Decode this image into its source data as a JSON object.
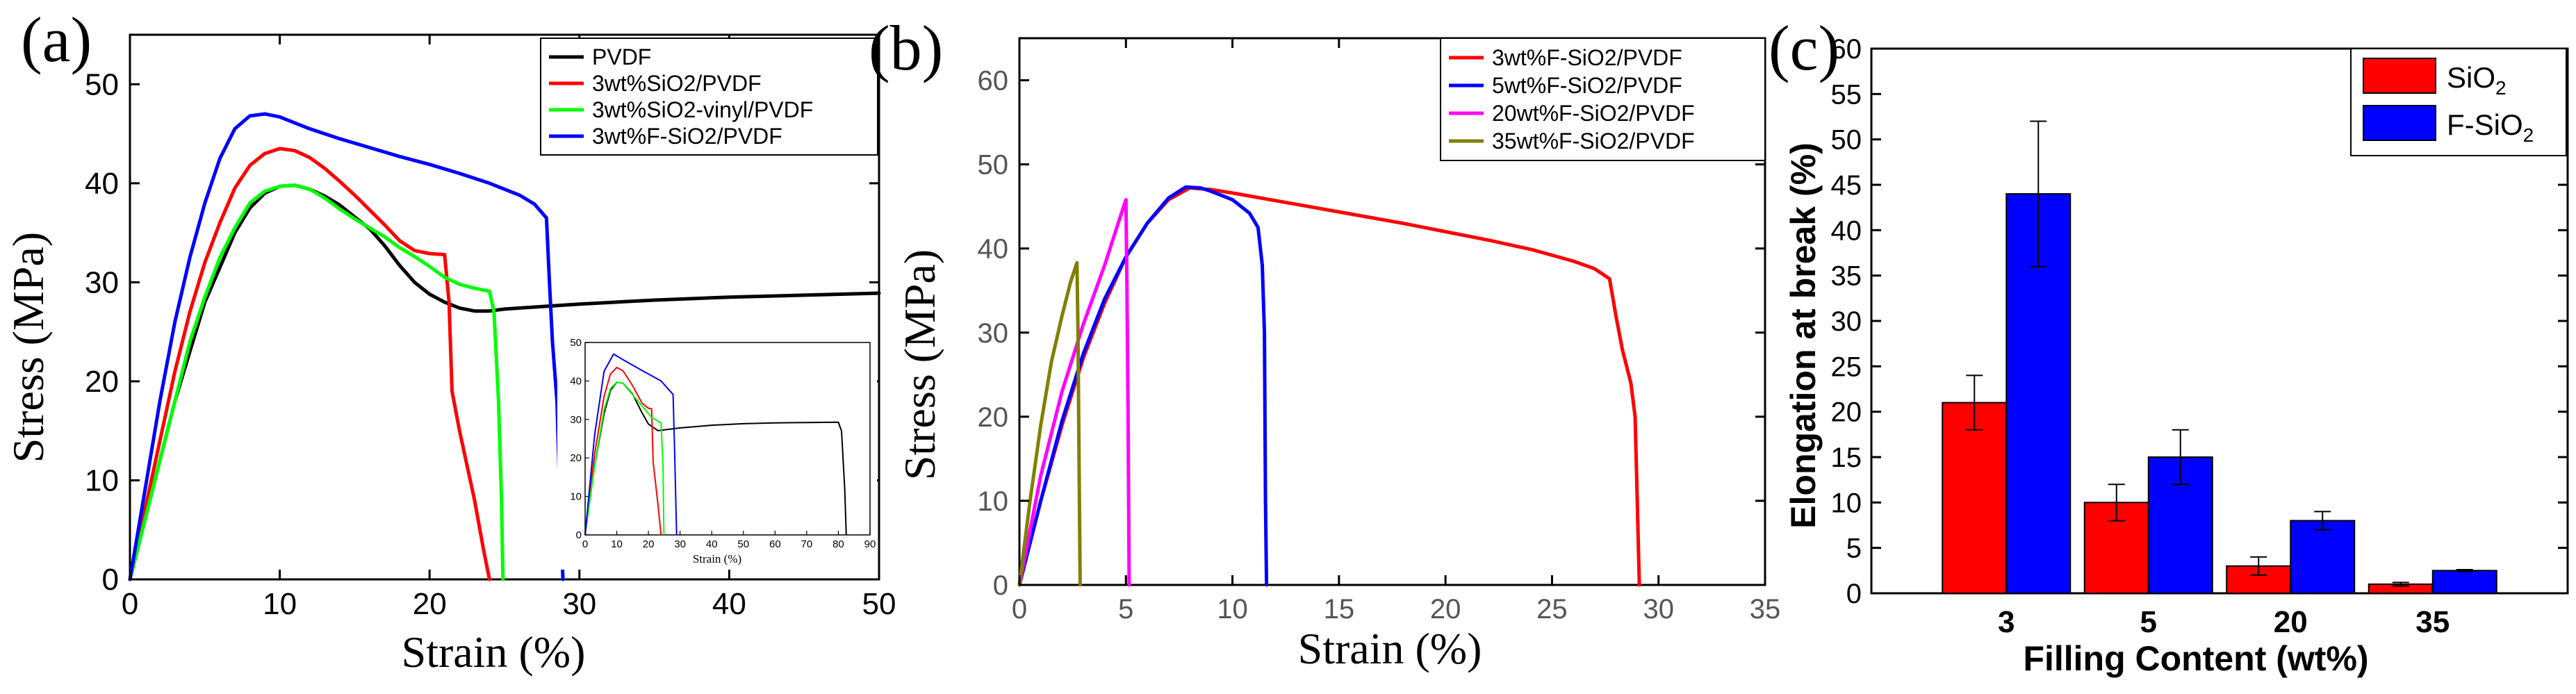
{
  "chart_data": [
    {
      "panel": "(a)",
      "type": "line",
      "xlabel": "Strain (%)",
      "ylabel": "Stress (MPa)",
      "xlim": [
        0,
        50
      ],
      "ylim": [
        0,
        55
      ],
      "xticks": [
        0,
        10,
        20,
        30,
        40,
        50
      ],
      "yticks": [
        0,
        10,
        20,
        30,
        40,
        50
      ],
      "legend_position": "top-right",
      "series": [
        {
          "name": "PVDF",
          "color": "#000000",
          "points": [
            [
              0,
              0
            ],
            [
              1,
              6
            ],
            [
              2,
              12
            ],
            [
              3,
              18
            ],
            [
              4,
              23
            ],
            [
              5,
              28
            ],
            [
              6,
              31.5
            ],
            [
              7,
              35
            ],
            [
              8,
              37.5
            ],
            [
              9,
              39
            ],
            [
              10,
              39.7
            ],
            [
              11,
              39.8
            ],
            [
              12,
              39.4
            ],
            [
              13,
              38.7
            ],
            [
              14,
              37.8
            ],
            [
              15,
              36.6
            ],
            [
              16,
              35.4
            ],
            [
              17,
              33.7
            ],
            [
              18,
              31.7
            ],
            [
              19,
              30
            ],
            [
              20,
              28.8
            ],
            [
              21,
              28
            ],
            [
              22,
              27.4
            ],
            [
              23,
              27.1
            ],
            [
              24,
              27.1
            ],
            [
              25,
              27.3
            ],
            [
              27,
              27.5
            ],
            [
              30,
              27.8
            ],
            [
              35,
              28.2
            ],
            [
              40,
              28.5
            ],
            [
              45,
              28.7
            ],
            [
              50,
              28.9
            ]
          ]
        },
        {
          "name": "3wt%SiO2/PVDF",
          "color": "#ff0000",
          "points": [
            [
              0,
              0
            ],
            [
              1,
              7
            ],
            [
              2,
              14
            ],
            [
              3,
              21
            ],
            [
              4,
              27
            ],
            [
              5,
              32
            ],
            [
              6,
              36
            ],
            [
              7,
              39.5
            ],
            [
              8,
              41.8
            ],
            [
              9,
              43
            ],
            [
              10,
              43.5
            ],
            [
              11,
              43.3
            ],
            [
              12,
              42.6
            ],
            [
              13,
              41.5
            ],
            [
              14,
              40.2
            ],
            [
              15,
              38.8
            ],
            [
              16,
              37.3
            ],
            [
              17,
              35.8
            ],
            [
              18,
              34.2
            ],
            [
              19,
              33.2
            ],
            [
              20,
              32.9
            ],
            [
              21,
              32.8
            ],
            [
              21.3,
              28
            ],
            [
              21.5,
              19
            ],
            [
              22,
              15
            ],
            [
              23,
              8
            ],
            [
              23.6,
              3
            ],
            [
              24,
              0
            ]
          ]
        },
        {
          "name": "3wt%SiO2-vinyl/PVDF",
          "color": "#00ff00",
          "points": [
            [
              0,
              0
            ],
            [
              1,
              6
            ],
            [
              2,
              12
            ],
            [
              3,
              18
            ],
            [
              4,
              24
            ],
            [
              5,
              28.5
            ],
            [
              6,
              32.5
            ],
            [
              7,
              35.5
            ],
            [
              8,
              38
            ],
            [
              9,
              39.2
            ],
            [
              10,
              39.7
            ],
            [
              11,
              39.8
            ],
            [
              12,
              39.4
            ],
            [
              13,
              38.5
            ],
            [
              14,
              37.4
            ],
            [
              15,
              36.4
            ],
            [
              16,
              35.5
            ],
            [
              17,
              34.6
            ],
            [
              18,
              33.5
            ],
            [
              19,
              32.6
            ],
            [
              20,
              31.6
            ],
            [
              21,
              30.5
            ],
            [
              22,
              29.8
            ],
            [
              23,
              29.4
            ],
            [
              24,
              29.1
            ],
            [
              24.3,
              27
            ],
            [
              24.6,
              18
            ],
            [
              24.8,
              8
            ],
            [
              24.9,
              0
            ]
          ]
        },
        {
          "name": "3wt%F-SiO2/PVDF",
          "color": "#0000ff",
          "points": [
            [
              0,
              0
            ],
            [
              1,
              9
            ],
            [
              2,
              18
            ],
            [
              3,
              26
            ],
            [
              4,
              32.5
            ],
            [
              5,
              38
            ],
            [
              6,
              42.5
            ],
            [
              7,
              45.5
            ],
            [
              8,
              46.8
            ],
            [
              9,
              47
            ],
            [
              10,
              46.7
            ],
            [
              11,
              46.1
            ],
            [
              12,
              45.5
            ],
            [
              14,
              44.5
            ],
            [
              16,
              43.6
            ],
            [
              18,
              42.7
            ],
            [
              20,
              41.9
            ],
            [
              22,
              41
            ],
            [
              24,
              40
            ],
            [
              26,
              38.8
            ],
            [
              27,
              37.9
            ],
            [
              27.8,
              36.5
            ],
            [
              28,
              30
            ],
            [
              28.2,
              24
            ],
            [
              28.5,
              18
            ],
            [
              28.7,
              8
            ],
            [
              28.9,
              0
            ]
          ]
        }
      ],
      "inset": {
        "xlabel": "Strain (%)",
        "xlim": [
          0,
          90
        ],
        "ylim": [
          0,
          50
        ],
        "xticks": [
          0,
          10,
          20,
          30,
          40,
          50,
          60,
          70,
          80,
          90
        ],
        "yticks": [
          0,
          10,
          20,
          30,
          40,
          50
        ],
        "series": [
          {
            "name": "PVDF",
            "color": "#000000",
            "points": [
              [
                0,
                0
              ],
              [
                3,
                18
              ],
              [
                6,
                31.5
              ],
              [
                8,
                37.5
              ],
              [
                10,
                39.7
              ],
              [
                12,
                39.4
              ],
              [
                15,
                36.6
              ],
              [
                18,
                31.7
              ],
              [
                20,
                28.8
              ],
              [
                23,
                27.1
              ],
              [
                30,
                27.8
              ],
              [
                40,
                28.5
              ],
              [
                50,
                28.9
              ],
              [
                60,
                29.1
              ],
              [
                70,
                29.2
              ],
              [
                80,
                29.3
              ],
              [
                81,
                27
              ],
              [
                82,
                12
              ],
              [
                82.5,
                0
              ]
            ]
          },
          {
            "name": "3wt%SiO2/PVDF",
            "color": "#ff0000",
            "points": [
              [
                0,
                0
              ],
              [
                3,
                21
              ],
              [
                6,
                36
              ],
              [
                8,
                41.8
              ],
              [
                10,
                43.5
              ],
              [
                12,
                42.6
              ],
              [
                15,
                38.8
              ],
              [
                18,
                34.2
              ],
              [
                20,
                32.9
              ],
              [
                21,
                32.8
              ],
              [
                21.5,
                19
              ],
              [
                23,
                8
              ],
              [
                24,
                0
              ]
            ]
          },
          {
            "name": "3wt%SiO2-vinyl/PVDF",
            "color": "#00ff00",
            "points": [
              [
                0,
                0
              ],
              [
                3,
                18
              ],
              [
                6,
                32.5
              ],
              [
                8,
                38
              ],
              [
                10,
                39.7
              ],
              [
                12,
                39.4
              ],
              [
                15,
                36.4
              ],
              [
                18,
                33.5
              ],
              [
                21,
                30.5
              ],
              [
                24,
                29.1
              ],
              [
                24.6,
                18
              ],
              [
                24.9,
                0
              ]
            ]
          },
          {
            "name": "3wt%F-SiO2/PVDF",
            "color": "#0000ff",
            "points": [
              [
                0,
                0
              ],
              [
                3,
                26
              ],
              [
                6,
                42.5
              ],
              [
                9,
                47
              ],
              [
                12,
                45.5
              ],
              [
                18,
                42.7
              ],
              [
                24,
                40
              ],
              [
                27.8,
                36.5
              ],
              [
                28.2,
                24
              ],
              [
                28.9,
                0
              ]
            ]
          }
        ]
      }
    },
    {
      "panel": "(b)",
      "type": "line",
      "xlabel": "Strain (%)",
      "ylabel": "Stress (MPa)",
      "xlim": [
        0,
        35
      ],
      "ylim": [
        0,
        65
      ],
      "xticks": [
        0,
        5,
        10,
        15,
        20,
        25,
        30,
        35
      ],
      "yticks": [
        0,
        10,
        20,
        30,
        40,
        50,
        60
      ],
      "legend_position": "top-right",
      "series": [
        {
          "name": "3wt%F-SiO2/PVDF",
          "color": "#ff0000",
          "points": [
            [
              0,
              0
            ],
            [
              1,
              10
            ],
            [
              2,
              19
            ],
            [
              3,
              27
            ],
            [
              4,
              33.5
            ],
            [
              5,
              39
            ],
            [
              6,
              43
            ],
            [
              7,
              45.8
            ],
            [
              8,
              47.2
            ],
            [
              9,
              47
            ],
            [
              10,
              46.6
            ],
            [
              12,
              45.7
            ],
            [
              14,
              44.8
            ],
            [
              16,
              43.9
            ],
            [
              18,
              43
            ],
            [
              20,
              42
            ],
            [
              22,
              41
            ],
            [
              24,
              39.9
            ],
            [
              26,
              38.5
            ],
            [
              27,
              37.6
            ],
            [
              27.7,
              36.4
            ],
            [
              28,
              32
            ],
            [
              28.3,
              28
            ],
            [
              28.7,
              24
            ],
            [
              28.9,
              20
            ],
            [
              29,
              10
            ],
            [
              29.1,
              0
            ]
          ]
        },
        {
          "name": "5wt%F-SiO2/PVDF",
          "color": "#0000ff",
          "points": [
            [
              0,
              0
            ],
            [
              1,
              10
            ],
            [
              2,
              19.5
            ],
            [
              3,
              27.5
            ],
            [
              4,
              34
            ],
            [
              5,
              39
            ],
            [
              6,
              43
            ],
            [
              7,
              46
            ],
            [
              7.8,
              47.3
            ],
            [
              8.5,
              47.2
            ],
            [
              9,
              46.8
            ],
            [
              10,
              45.8
            ],
            [
              10.8,
              44.2
            ],
            [
              11.2,
              42.5
            ],
            [
              11.4,
              38
            ],
            [
              11.5,
              30
            ],
            [
              11.55,
              10
            ],
            [
              11.6,
              0
            ]
          ]
        },
        {
          "name": "20wt%F-SiO2/PVDF",
          "color": "#ff00ff",
          "points": [
            [
              0,
              0
            ],
            [
              1,
              13
            ],
            [
              2,
              23
            ],
            [
              3,
              31
            ],
            [
              4,
              38
            ],
            [
              4.7,
              43.5
            ],
            [
              5,
              45.8
            ],
            [
              5.05,
              35
            ],
            [
              5.1,
              20
            ],
            [
              5.15,
              0
            ]
          ]
        },
        {
          "name": "35wt%F-SiO2/PVDF",
          "color": "#808000",
          "points": [
            [
              0,
              0
            ],
            [
              0.5,
              10
            ],
            [
              1,
              19
            ],
            [
              1.5,
              26.5
            ],
            [
              2,
              32
            ],
            [
              2.4,
              36
            ],
            [
              2.7,
              38.3
            ],
            [
              2.75,
              30
            ],
            [
              2.8,
              15
            ],
            [
              2.85,
              0
            ]
          ]
        }
      ]
    },
    {
      "panel": "(c)",
      "type": "bar",
      "xlabel": "Filling Content (wt%)",
      "ylabel": "Elongation at break (%)",
      "categories": [
        "3",
        "5",
        "20",
        "35"
      ],
      "ylim": [
        0,
        60
      ],
      "yticks": [
        0,
        5,
        10,
        15,
        20,
        25,
        30,
        35,
        40,
        45,
        50,
        55,
        60
      ],
      "legend_position": "top-right",
      "series": [
        {
          "name": "SiO",
          "subscript": "2",
          "color": "#ff0000",
          "values": [
            21,
            10,
            3,
            1
          ],
          "errors": [
            3,
            2,
            1,
            0.2
          ]
        },
        {
          "name": "F-SiO",
          "subscript": "2",
          "color": "#0000ff",
          "values": [
            44,
            15,
            8,
            2.5
          ],
          "errors": [
            8,
            3,
            1,
            0.1
          ]
        }
      ]
    }
  ]
}
